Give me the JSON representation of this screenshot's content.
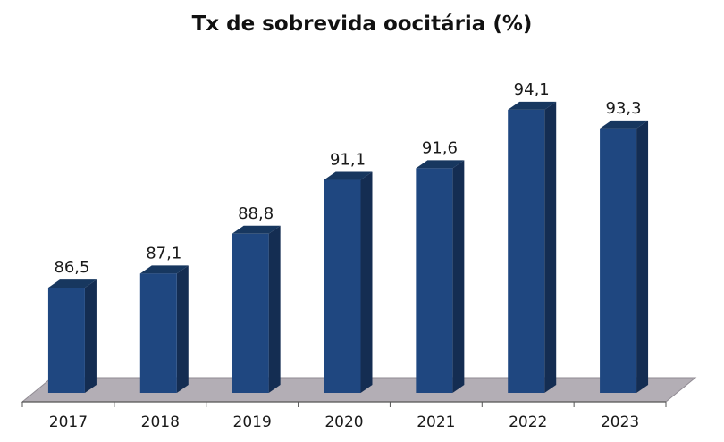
{
  "chart_data": {
    "type": "bar",
    "title": "Tx de sobrevida oocitária (%)",
    "categories": [
      "2017",
      "2018",
      "2019",
      "2020",
      "2021",
      "2022",
      "2023"
    ],
    "values": [
      86.5,
      87.1,
      88.8,
      91.1,
      91.6,
      94.1,
      93.3
    ],
    "value_labels": [
      "86,5",
      "87,1",
      "88,8",
      "91,1",
      "91,6",
      "94,1",
      "93,3"
    ],
    "xlabel": "",
    "ylabel": "",
    "ylim": [
      82,
      96.5
    ],
    "grid": false,
    "legend": "none",
    "style": "3d-column",
    "colors": {
      "bar_front": "#1f4780",
      "bar_top": "#17375f",
      "bar_side": "#142d52",
      "floor": "#b3aeb5"
    }
  }
}
